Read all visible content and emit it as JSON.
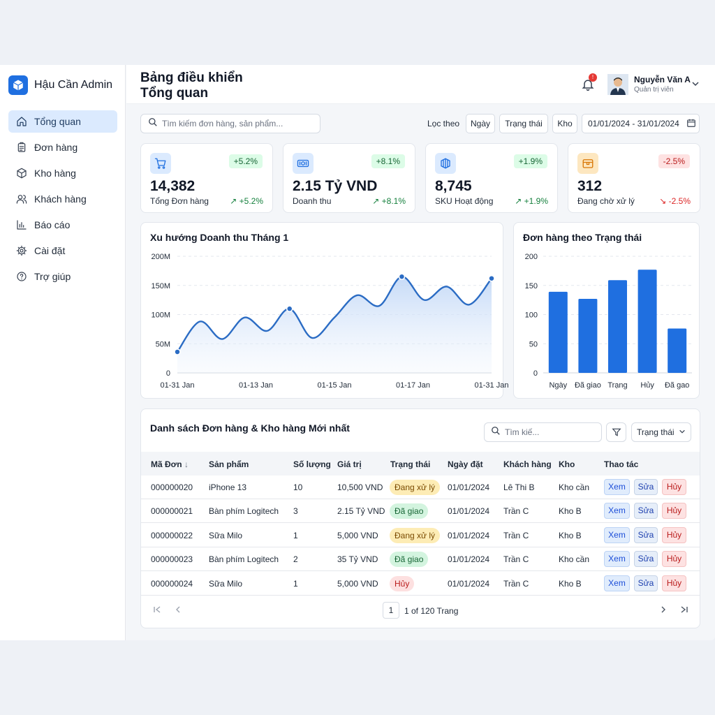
{
  "app": {
    "brand": "Hậu Cần Admin"
  },
  "sidebar": {
    "items": [
      {
        "label": "Tổng quan",
        "icon": "home-icon",
        "active": true
      },
      {
        "label": "Đơn hàng",
        "icon": "clipboard-icon"
      },
      {
        "label": "Kho hàng",
        "icon": "box-icon"
      },
      {
        "label": "Khách hàng",
        "icon": "users-icon"
      },
      {
        "label": "Báo cáo",
        "icon": "bar-chart-icon"
      },
      {
        "label": "Cài đặt",
        "icon": "gear-icon"
      },
      {
        "label": "Trợ giúp",
        "icon": "help-icon"
      }
    ]
  },
  "header": {
    "title_line1": "Bảng điều khiển",
    "title_line2": "Tổng quan",
    "notification_count": "!",
    "user": {
      "name": "Nguyễn Văn A",
      "role": "Quản trị viên"
    }
  },
  "toolbar": {
    "search_placeholder": "Tìm kiếm đơn hàng, sản phẩm...",
    "filter_label": "Lọc theo",
    "filters": [
      "Ngày",
      "Trạng thái",
      "Kho"
    ],
    "date_range": "01/01/2024 - 31/01/2024"
  },
  "kpis": [
    {
      "value": "14,382",
      "label": "Tổng Đơn hàng",
      "badge": "+5.2%",
      "delta": "↗ +5.2%",
      "trend": "up",
      "icon": "cart-icon",
      "icon_color": "#1f6fe0",
      "icon_bg": "#dbeafe"
    },
    {
      "value": "2.15 Tỷ VND",
      "label": "Doanh thu",
      "badge": "+8.1%",
      "delta": "↗ +8.1%",
      "trend": "up",
      "icon": "money-icon",
      "icon_color": "#1f6fe0",
      "icon_bg": "#dbeafe"
    },
    {
      "value": "8,745",
      "label": "SKU Hoạt động",
      "badge": "+1.9%",
      "delta": "↗ +1.9%",
      "trend": "up",
      "icon": "boxes-icon",
      "icon_color": "#1f6fe0",
      "icon_bg": "#dbeafe"
    },
    {
      "value": "312",
      "label": "Đang chờ xử lý",
      "badge": "-2.5%",
      "delta": "↘ -2.5%",
      "trend": "down",
      "icon": "pending-box-icon",
      "icon_color": "#d97706",
      "icon_bg": "#fde7c0"
    }
  ],
  "chart_data": [
    {
      "type": "line",
      "title": "Xu hướng Doanh thu Tháng 1",
      "x_ticks": [
        "01-31 Jan",
        "01-13 Jan",
        "01-15 Jan",
        "01-17 Jan",
        "01-31 Jan"
      ],
      "y_ticks": [
        "0",
        "50M",
        "100M",
        "150M",
        "200M"
      ],
      "ylim": [
        0,
        200
      ],
      "series": [
        {
          "values": [
            36,
            88,
            58,
            95,
            72,
            110,
            60,
            95,
            133,
            115,
            165,
            125,
            148,
            117,
            162
          ],
          "marked": [
            0,
            5,
            10,
            14
          ]
        }
      ],
      "grid": true,
      "fill": true
    },
    {
      "type": "bar",
      "title": "Đơn hàng theo Trạng thái",
      "categories": [
        "Ngày",
        "Đã giao",
        "Trạng",
        "Hủy",
        "Đã gao"
      ],
      "values": [
        139,
        127,
        159,
        177,
        76
      ],
      "y_ticks": [
        "0",
        "50",
        "100",
        "150",
        "200"
      ],
      "ylim": [
        0,
        200
      ],
      "grid": true,
      "color": "#1f6fe0"
    }
  ],
  "table": {
    "title": "Danh sách Đơn hàng & Kho hàng Mới nhất",
    "search_placeholder": "Tìm kiế...",
    "status_select": "Trạng thái",
    "columns": [
      "Mã Đơn",
      "Sản phẩm",
      "Số lượng",
      "Giá trị",
      "Trạng thái",
      "Ngày đặt",
      "Khách hàng",
      "Kho",
      "Thao tác"
    ],
    "sort_indicator": "↓",
    "rows": [
      {
        "id": "000000020",
        "product": "iPhone 13",
        "qty": "10",
        "value": "10,500 VND",
        "status": "Đang xử lý",
        "status_type": "processing",
        "date": "01/01/2024",
        "customer": "Lê Thi B",
        "warehouse": "Kho cần"
      },
      {
        "id": "000000021",
        "product": "Bàn phím Logitech",
        "qty": "3",
        "value": "2.15 Tỷ VND",
        "status": "Đã giao",
        "status_type": "delivered",
        "date": "01/01/2024",
        "customer": "Trần C",
        "warehouse": "Kho B"
      },
      {
        "id": "000000022",
        "product": "Sữa Milo",
        "qty": "1",
        "value": "5,000 VND",
        "status": "Đang xử lý",
        "status_type": "processing",
        "date": "01/01/2024",
        "customer": "Trần C",
        "warehouse": "Kho B"
      },
      {
        "id": "000000023",
        "product": "Bàn phím Logitech",
        "qty": "2",
        "value": "35 Tỷ VND",
        "status": "Đã giao",
        "status_type": "delivered",
        "date": "01/01/2024",
        "customer": "Trần C",
        "warehouse": "Kho cần"
      },
      {
        "id": "000000024",
        "product": "Sữa Milo",
        "qty": "1",
        "value": "5,000 VND",
        "status": "Hủy",
        "status_type": "cancel",
        "date": "01/01/2024",
        "customer": "Trần C",
        "warehouse": "Kho B"
      }
    ],
    "actions": {
      "view": "Xem",
      "edit": "Sửa",
      "delete": "Hủy"
    },
    "pagination": {
      "page": "1",
      "info": "1 of 120 Trang"
    }
  }
}
